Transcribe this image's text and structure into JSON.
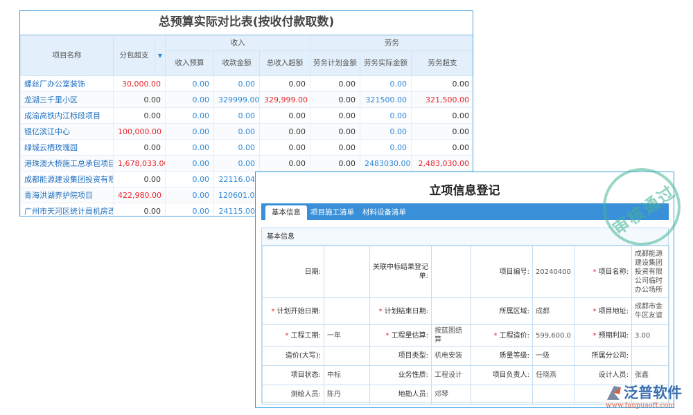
{
  "budget": {
    "title": "总预算实际对比表(按收付款取数)",
    "headers": {
      "name": "项目名称",
      "subcontract": "分包超支",
      "income": "收入",
      "income_budget": "收入预算",
      "received": "收款金额",
      "income_over": "总收入超额",
      "labor": "劳务",
      "labor_plan": "劳务计划金额",
      "labor_actual": "劳务实际金额",
      "labor_over": "劳务超支"
    },
    "rows": [
      [
        "螺丝厂办公室装饰",
        "30,000.00",
        "0.00",
        "0.00",
        "0.00",
        "0.00",
        "0.00",
        "0.00"
      ],
      [
        "龙湖三千里小区",
        "0.00",
        "0.00",
        "329999.00",
        "329,999.00",
        "0.00",
        "321500.00",
        "321,500.00"
      ],
      [
        "成渝高铁内江标段项目",
        "0.00",
        "0.00",
        "0.00",
        "0.00",
        "0.00",
        "0.00",
        "0.00"
      ],
      [
        "银亿滨江中心",
        "100,000.00",
        "0.00",
        "0.00",
        "0.00",
        "0.00",
        "0.00",
        "0.00"
      ],
      [
        "绿城云栖玫瑰园",
        "0.00",
        "0.00",
        "0.00",
        "0.00",
        "0.00",
        "0.00",
        "0.00"
      ],
      [
        "港珠澳大桥施工总承包项目",
        "1,678,033.00",
        "0.00",
        "0.00",
        "0.00",
        "0.00",
        "2483030.00",
        "2,483,030.00"
      ],
      [
        "成都能源建设集团投资有限公司",
        "0.00",
        "0.00",
        "22116.04",
        "",
        "",
        "",
        ""
      ],
      [
        "青海洪湖养护院项目",
        "422,980.00",
        "0.00",
        "120601.02",
        "",
        "",
        "",
        ""
      ],
      [
        "广州市天河区统计局机房改造",
        "0.00",
        "0.00",
        "24115.00",
        "",
        "",
        "",
        ""
      ]
    ]
  },
  "registration": {
    "title": "立项信息登记",
    "tabs": [
      "基本信息",
      "项目施工清单",
      "材料设备清单"
    ],
    "section": "基本信息",
    "fields": [
      [
        {
          "l": "日期:",
          "v": ""
        },
        {
          "l": "关联中标结果登记单:",
          "v": ""
        },
        {
          "l": "项目编号:",
          "v": "20240400"
        },
        {
          "l": "项目名称:",
          "v": "成都能源建设集团投资有限公司临时办公场所",
          "req": true
        }
      ],
      [
        {
          "l": "计划开始日期:",
          "v": "",
          "req": true
        },
        {
          "l": "计划结束日期:",
          "v": "",
          "req": true
        },
        {
          "l": "所属区域:",
          "v": "成都"
        },
        {
          "l": "项目地址:",
          "v": "成都市金牛区友谊",
          "req": true
        }
      ],
      [
        {
          "l": "工程工期:",
          "v": "一年",
          "req": true
        },
        {
          "l": "工程量估算:",
          "v": "按蓝图结算",
          "req": true
        },
        {
          "l": "工程造价:",
          "v": "599,600.0",
          "req": true
        },
        {
          "l": "预期利润:",
          "v": "3.00",
          "req": true
        }
      ],
      [
        {
          "l": "造价(大写):",
          "v": ""
        },
        {
          "l": "项目类型:",
          "v": "机电安装"
        },
        {
          "l": "质量等级:",
          "v": "一级"
        },
        {
          "l": "所属分公司:",
          "v": ""
        }
      ],
      [
        {
          "l": "项目状态:",
          "v": "中标"
        },
        {
          "l": "业务性质:",
          "v": "工程设计"
        },
        {
          "l": "项目负责人:",
          "v": "任晓燕"
        },
        {
          "l": "设计人员:",
          "v": "张鑫"
        }
      ],
      [
        {
          "l": "测绘人员:",
          "v": "陈丹"
        },
        {
          "l": "地勘人员:",
          "v": "邓琴"
        },
        {
          "l": "",
          "v": ""
        },
        {
          "l": "",
          "v": ""
        }
      ]
    ]
  },
  "stamp": "审核通过",
  "logo": {
    "name": "泛普软件",
    "url": "www.fanpusoft.com"
  }
}
